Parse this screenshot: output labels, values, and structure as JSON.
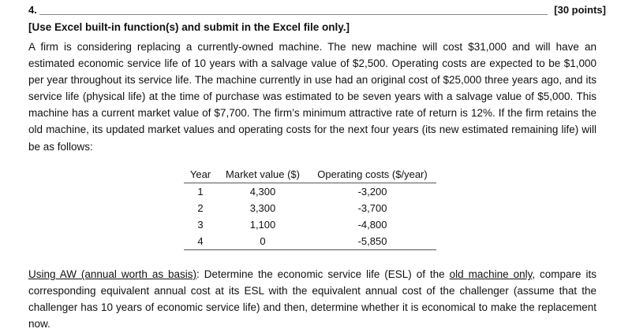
{
  "header": {
    "question_number": "4.",
    "points": "[30 points]"
  },
  "instruction": "[Use Excel built-in function(s) and submit in the Excel file only.]",
  "problem_text": "A firm is considering replacing a currently-owned machine. The new machine will cost $31,000 and will have an estimated economic service life of 10 years with a salvage value of $2,500. Operating costs are expected to be $1,000 per year throughout its service life. The machine currently in use had an original cost of $25,000 three years ago, and its service life (physical life) at the time of purchase was estimated to be seven years with a salvage value of $5,000. This machine has a current market value of $7,700. The firm’s minimum attractive rate of return is 12%. If the firm retains the old machine, its updated market values and operating costs for the next four years (its new estimated remaining life) will be as follows:",
  "table": {
    "headers": [
      "Year",
      "Market value ($)",
      "Operating costs ($/year)"
    ],
    "rows": [
      [
        "1",
        "4,300",
        "-3,200"
      ],
      [
        "2",
        "3,300",
        "-3,700"
      ],
      [
        "3",
        "1,100",
        "-4,800"
      ],
      [
        "4",
        "0",
        "-5,850"
      ]
    ]
  },
  "question": {
    "u1": "Using AW (annual worth as basis)",
    "t1": ": Determine the economic service life (ESL) of the ",
    "u2": "old machine only",
    "t2": ", compare its corresponding equivalent annual cost at its ESL with the equivalent annual cost of the challenger (assume that the challenger has 10 years of economic service life) and then, determine whether it is economical to make the replacement now."
  }
}
